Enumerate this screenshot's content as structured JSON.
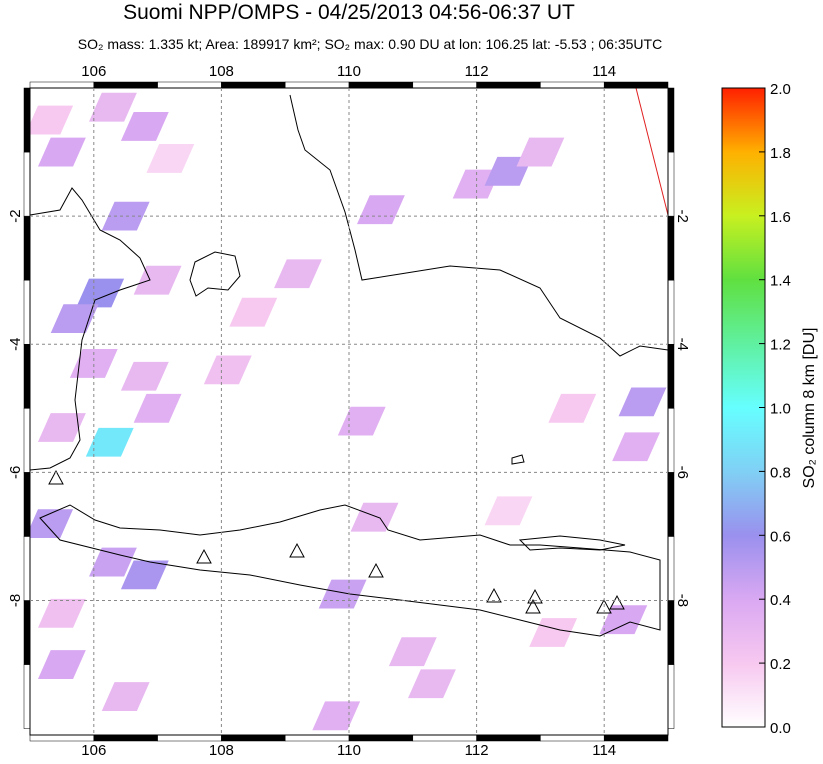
{
  "header": {
    "title": "Suomi NPP/OMPS - 04/25/2013 04:56-06:37 UT",
    "subtitle": "SO₂ mass: 1.335 kt; Area: 189917 km²; SO₂ max: 0.90 DU at lon: 106.25 lat: -5.53 ; 06:35UTC"
  },
  "map": {
    "xlim": [
      105,
      115
    ],
    "ylim": [
      -10.1,
      0
    ],
    "xticks": [
      106,
      108,
      110,
      112,
      114
    ],
    "yticks": [
      -2,
      -4,
      -6,
      -8
    ],
    "grid": true,
    "tiles": [
      {
        "lon": 105.3,
        "lat": -0.5,
        "value": 0.2
      },
      {
        "lon": 105.5,
        "lat": -1.0,
        "value": 0.4
      },
      {
        "lon": 106.3,
        "lat": -0.3,
        "value": 0.3
      },
      {
        "lon": 106.8,
        "lat": -0.6,
        "value": 0.4
      },
      {
        "lon": 107.2,
        "lat": -1.1,
        "value": 0.15
      },
      {
        "lon": 106.5,
        "lat": -2.0,
        "value": 0.5
      },
      {
        "lon": 107.0,
        "lat": -3.0,
        "value": 0.3
      },
      {
        "lon": 106.1,
        "lat": -3.2,
        "value": 0.6
      },
      {
        "lon": 105.7,
        "lat": -3.6,
        "value": 0.5
      },
      {
        "lon": 106.0,
        "lat": -4.3,
        "value": 0.35
      },
      {
        "lon": 106.8,
        "lat": -4.5,
        "value": 0.3
      },
      {
        "lon": 107.0,
        "lat": -5.0,
        "value": 0.35
      },
      {
        "lon": 106.25,
        "lat": -5.53,
        "value": 0.9
      },
      {
        "lon": 105.5,
        "lat": -5.3,
        "value": 0.3
      },
      {
        "lon": 105.3,
        "lat": -6.8,
        "value": 0.5
      },
      {
        "lon": 106.3,
        "lat": -7.4,
        "value": 0.45
      },
      {
        "lon": 106.8,
        "lat": -7.6,
        "value": 0.55
      },
      {
        "lon": 105.5,
        "lat": -9.0,
        "value": 0.4
      },
      {
        "lon": 106.5,
        "lat": -9.5,
        "value": 0.3
      },
      {
        "lon": 110.2,
        "lat": -5.2,
        "value": 0.35
      },
      {
        "lon": 110.4,
        "lat": -6.7,
        "value": 0.3
      },
      {
        "lon": 109.9,
        "lat": -7.9,
        "value": 0.45
      },
      {
        "lon": 112.0,
        "lat": -1.5,
        "value": 0.35
      },
      {
        "lon": 112.5,
        "lat": -1.3,
        "value": 0.5
      },
      {
        "lon": 113.0,
        "lat": -1.0,
        "value": 0.3
      },
      {
        "lon": 114.6,
        "lat": -4.9,
        "value": 0.5
      },
      {
        "lon": 114.5,
        "lat": -5.6,
        "value": 0.35
      },
      {
        "lon": 109.2,
        "lat": -2.9,
        "value": 0.3
      },
      {
        "lon": 110.5,
        "lat": -1.9,
        "value": 0.4
      },
      {
        "lon": 108.5,
        "lat": -3.5,
        "value": 0.2
      },
      {
        "lon": 113.5,
        "lat": -5.0,
        "value": 0.2
      },
      {
        "lon": 111.0,
        "lat": -8.8,
        "value": 0.3
      },
      {
        "lon": 113.2,
        "lat": -8.5,
        "value": 0.2
      },
      {
        "lon": 114.3,
        "lat": -8.3,
        "value": 0.4
      },
      {
        "lon": 109.8,
        "lat": -9.8,
        "value": 0.35
      },
      {
        "lon": 111.3,
        "lat": -9.3,
        "value": 0.3
      },
      {
        "lon": 112.5,
        "lat": -6.6,
        "value": 0.15
      },
      {
        "lon": 108.1,
        "lat": -4.4,
        "value": 0.25
      },
      {
        "lon": 105.5,
        "lat": -8.2,
        "value": 0.25
      }
    ]
  },
  "colorbar": {
    "label": "SO₂ column 8 km [DU]",
    "lim": [
      0,
      2
    ],
    "ticks": [
      {
        "value": 0,
        "label": "0.0"
      },
      0.2,
      0.4,
      0.6,
      0.8,
      {
        "value": 1,
        "label": "1.0"
      },
      1.2,
      1.4,
      1.6,
      1.8,
      {
        "value": 2,
        "label": "2.0"
      }
    ],
    "colormap": [
      "#ffffff",
      "#f7c8f0",
      "#d9a8f2",
      "#9a90ee",
      "#80d0f5",
      "#66ffff",
      "#60f0a0",
      "#60e040",
      "#c8f020",
      "#ffb000",
      "#ff2000"
    ]
  }
}
